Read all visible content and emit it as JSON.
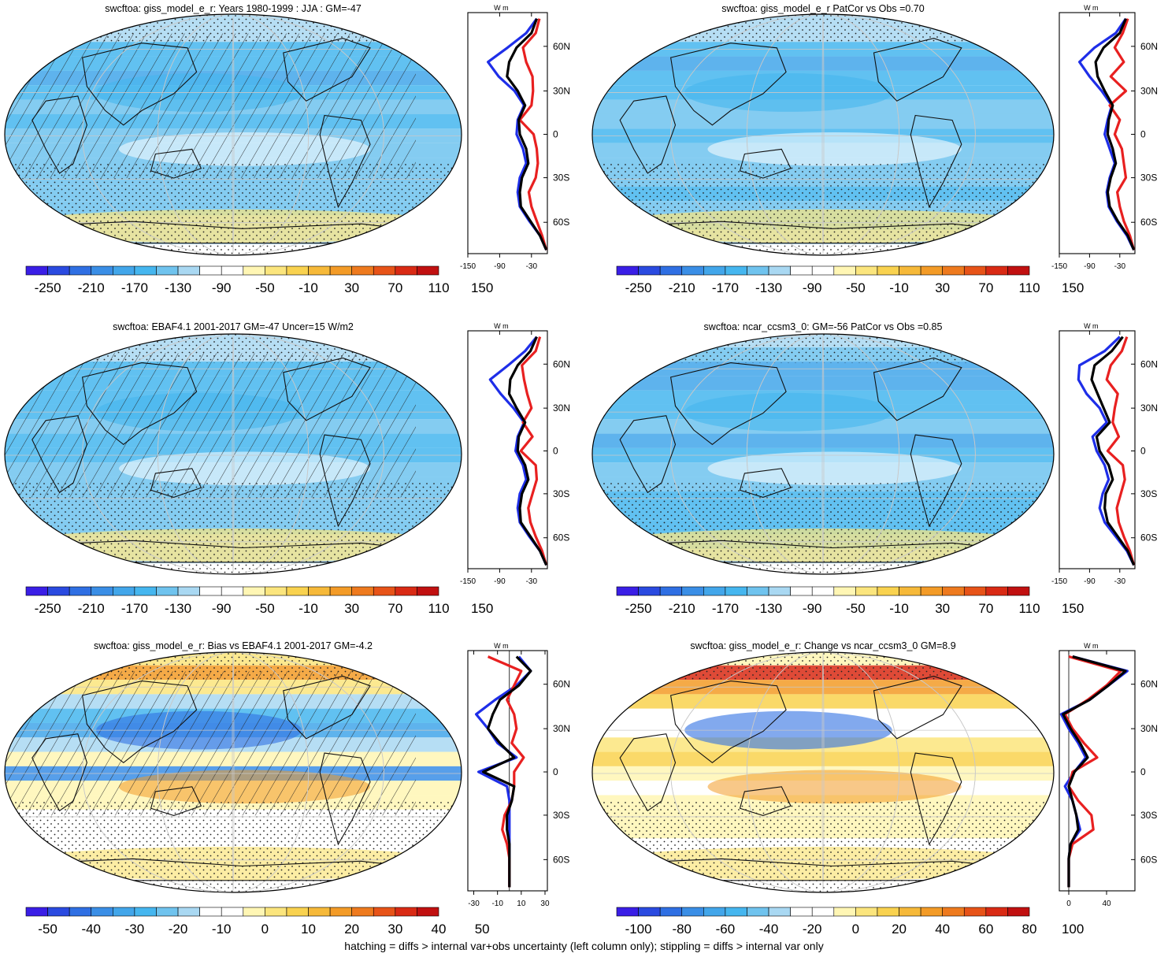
{
  "caption": "hatching = diffs > internal var+obs uncertainty (left column only); stippling = diffs > internal var only",
  "colors": {
    "negative_ramp": [
      "#3a1ee6",
      "#2a4ae0",
      "#2f6fe3",
      "#3a8ee6",
      "#42a6ea",
      "#45b6ef",
      "#6fc3ee",
      "#a9d8f2"
    ],
    "positive_ramp": [
      "#fff6b4",
      "#fbe57d",
      "#f9d24f",
      "#f6b939",
      "#f39b27",
      "#ee7a1e",
      "#e75318",
      "#d92a14",
      "#c11010"
    ],
    "model_line": "#1e2ee8",
    "obs_line": "#e82020",
    "ref_line": "#000000"
  },
  "chart_data": [
    {
      "type": "map",
      "title": "swcftoa: giss_model_e_r: Years 1980-1999 : JJA : GM=-47",
      "colorbar_labels": [
        "-250",
        "-210",
        "-170",
        "-130",
        "-90",
        "-50",
        "-10",
        "30",
        "70",
        "110",
        "150"
      ],
      "zonal_profile": {
        "units": "W m-2",
        "xticks": [
          "-150",
          "-90",
          "-30"
        ],
        "xlim": [
          -150,
          0
        ],
        "yticks": [
          "60N",
          "30N",
          "0",
          "30S",
          "60S"
        ],
        "lat": [
          80,
          70,
          60,
          50,
          40,
          30,
          20,
          10,
          0,
          -10,
          -20,
          -30,
          -40,
          -50,
          -60,
          -70,
          -80
        ],
        "series": [
          {
            "values": [
              -20,
              -40,
              -75,
              -112,
              -92,
              -62,
              -44,
              -56,
              -58,
              -46,
              -40,
              -52,
              -56,
              -52,
              -34,
              -14,
              -2
            ]
          },
          {
            "values": [
              -15,
              -22,
              -46,
              -40,
              -28,
              -27,
              -30,
              -52,
              -26,
              -20,
              -18,
              -22,
              -35,
              -30,
              -20,
              -10,
              -2
            ]
          },
          {
            "values": [
              -20,
              -30,
              -58,
              -72,
              -76,
              -56,
              -42,
              -54,
              -52,
              -40,
              -36,
              -48,
              -52,
              -50,
              -32,
              -14,
              -2
            ]
          }
        ]
      }
    },
    {
      "type": "map",
      "title": "swcftoa: giss_model_e_r PatCor vs Obs =0.70",
      "colorbar_labels": [
        "-250",
        "-210",
        "-170",
        "-130",
        "-90",
        "-50",
        "-10",
        "30",
        "70",
        "110",
        "150"
      ],
      "zonal_profile": {
        "units": "W m-2",
        "xticks": [
          "-150",
          "-90",
          "-30"
        ],
        "xlim": [
          -150,
          0
        ],
        "yticks": [
          "60N",
          "30N",
          "0",
          "30S",
          "60S"
        ],
        "lat": [
          80,
          70,
          60,
          50,
          40,
          30,
          20,
          10,
          0,
          -10,
          -20,
          -30,
          -40,
          -50,
          -60,
          -70,
          -80
        ],
        "series": [
          {
            "values": [
              -18,
              -38,
              -80,
              -110,
              -90,
              -66,
              -46,
              -54,
              -60,
              -50,
              -40,
              -50,
              -56,
              -52,
              -36,
              -16,
              -2
            ]
          },
          {
            "values": [
              -14,
              -24,
              -40,
              -22,
              -48,
              -18,
              -50,
              -30,
              -40,
              -26,
              -22,
              -18,
              -35,
              -30,
              -22,
              -10,
              -2
            ]
          },
          {
            "values": [
              -18,
              -30,
              -62,
              -78,
              -74,
              -60,
              -44,
              -52,
              -54,
              -44,
              -38,
              -48,
              -54,
              -50,
              -34,
              -14,
              -2
            ]
          }
        ]
      }
    },
    {
      "type": "map",
      "title": "swcftoa: EBAF4.1 2001-2017 GM=-47 Uncer=15 W/m2",
      "colorbar_labels": [
        "-250",
        "-210",
        "-170",
        "-130",
        "-90",
        "-50",
        "-10",
        "30",
        "70",
        "110",
        "150"
      ],
      "zonal_profile": {
        "units": "W m-2",
        "xticks": [
          "-150",
          "-90",
          "-30"
        ],
        "xlim": [
          -150,
          0
        ],
        "yticks": [
          "60N",
          "30N",
          "0",
          "30S",
          "60S"
        ],
        "lat": [
          80,
          70,
          60,
          50,
          40,
          30,
          20,
          10,
          0,
          -10,
          -20,
          -30,
          -40,
          -50,
          -60,
          -70,
          -80
        ],
        "series": [
          {
            "values": [
              -20,
              -42,
              -74,
              -108,
              -88,
              -64,
              -44,
              -56,
              -60,
              -46,
              -40,
              -52,
              -56,
              -52,
              -34,
              -14,
              -2
            ]
          },
          {
            "values": [
              -14,
              -22,
              -48,
              -44,
              -38,
              -30,
              -46,
              -28,
              -50,
              -22,
              -20,
              -28,
              -36,
              -32,
              -22,
              -10,
              -2
            ]
          },
          {
            "values": [
              -20,
              -32,
              -56,
              -70,
              -72,
              -58,
              -42,
              -54,
              -56,
              -42,
              -36,
              -48,
              -52,
              -50,
              -32,
              -14,
              -2
            ]
          }
        ]
      }
    },
    {
      "type": "map",
      "title": "swcftoa: ncar_ccsm3_0: GM=-56 PatCor vs Obs =0.85",
      "colorbar_labels": [
        "-250",
        "-210",
        "-170",
        "-130",
        "-90",
        "-50",
        "-10",
        "30",
        "70",
        "110",
        "150"
      ],
      "zonal_profile": {
        "units": "W m-2",
        "xticks": [
          "-150",
          "-90",
          "-30"
        ],
        "xlim": [
          -150,
          0
        ],
        "yticks": [
          "60N",
          "30N",
          "0",
          "30S",
          "60S"
        ],
        "lat": [
          80,
          70,
          60,
          50,
          40,
          30,
          20,
          10,
          0,
          -10,
          -20,
          -30,
          -40,
          -50,
          -60,
          -70,
          -80
        ],
        "series": [
          {
            "values": [
              -30,
              -60,
              -110,
              -112,
              -96,
              -70,
              -56,
              -84,
              -76,
              -60,
              -52,
              -64,
              -70,
              -60,
              -38,
              -16,
              -2
            ]
          },
          {
            "values": [
              -16,
              -26,
              -48,
              -56,
              -34,
              -40,
              -44,
              -32,
              -54,
              -24,
              -20,
              -28,
              -36,
              -32,
              -22,
              -10,
              -2
            ]
          },
          {
            "values": [
              -24,
              -46,
              -80,
              -86,
              -74,
              -62,
              -50,
              -76,
              -70,
              -52,
              -44,
              -58,
              -60,
              -54,
              -34,
              -14,
              -2
            ]
          }
        ]
      }
    },
    {
      "type": "map",
      "title": "swcftoa: giss_model_e_r: Bias vs EBAF4.1 2001-2017 GM=-4.2",
      "colorbar_labels": [
        "-50",
        "-40",
        "-30",
        "-20",
        "-10",
        "0",
        "10",
        "20",
        "30",
        "40",
        "50"
      ],
      "zonal_profile": {
        "units": "W m-2",
        "xticks": [
          "-30",
          "-10",
          "10",
          "30"
        ],
        "xlim": [
          -35,
          32
        ],
        "yticks": [
          "60N",
          "30N",
          "0",
          "30S",
          "60S"
        ],
        "lat": [
          80,
          70,
          60,
          50,
          40,
          30,
          20,
          10,
          0,
          -10,
          -20,
          -30,
          -40,
          -50,
          -60,
          -70,
          -80
        ],
        "series": [
          {
            "values": [
              8,
              18,
              6,
              -12,
              -28,
              -18,
              -10,
              6,
              -26,
              -2,
              0,
              0,
              0,
              0,
              0,
              0,
              0
            ]
          },
          {
            "values": [
              -18,
              10,
              4,
              -2,
              4,
              6,
              2,
              12,
              4,
              4,
              2,
              -4,
              -6,
              -2,
              0,
              0,
              0
            ]
          },
          {
            "values": [
              6,
              18,
              8,
              -8,
              -14,
              -18,
              -8,
              4,
              -22,
              4,
              2,
              -2,
              -2,
              0,
              0,
              0,
              0
            ]
          }
        ]
      }
    },
    {
      "type": "map",
      "title": "swcftoa: giss_model_e_r: Change vs ncar_ccsm3_0 GM=8.9",
      "colorbar_labels": [
        "-100",
        "-80",
        "-60",
        "-40",
        "-20",
        "0",
        "20",
        "40",
        "60",
        "80",
        "100"
      ],
      "zonal_profile": {
        "units": "W m-2",
        "xticks": [
          "0",
          "40"
        ],
        "xlim": [
          -10,
          70
        ],
        "yticks": [
          "60N",
          "30N",
          "0",
          "30S",
          "60S"
        ],
        "lat": [
          80,
          70,
          60,
          50,
          40,
          30,
          20,
          10,
          0,
          -10,
          -20,
          -30,
          -40,
          -50,
          -60,
          -70,
          -80
        ],
        "series": [
          {
            "values": [
              4,
              62,
              42,
              22,
              -8,
              0,
              10,
              18,
              6,
              -4,
              4,
              8,
              12,
              2,
              0,
              0,
              0
            ]
          },
          {
            "values": [
              0,
              55,
              40,
              20,
              -4,
              4,
              16,
              30,
              4,
              0,
              10,
              24,
              26,
              4,
              0,
              0,
              0
            ]
          },
          {
            "values": [
              4,
              60,
              42,
              22,
              -6,
              2,
              12,
              20,
              6,
              0,
              4,
              8,
              10,
              2,
              0,
              0,
              0
            ]
          }
        ]
      }
    }
  ]
}
